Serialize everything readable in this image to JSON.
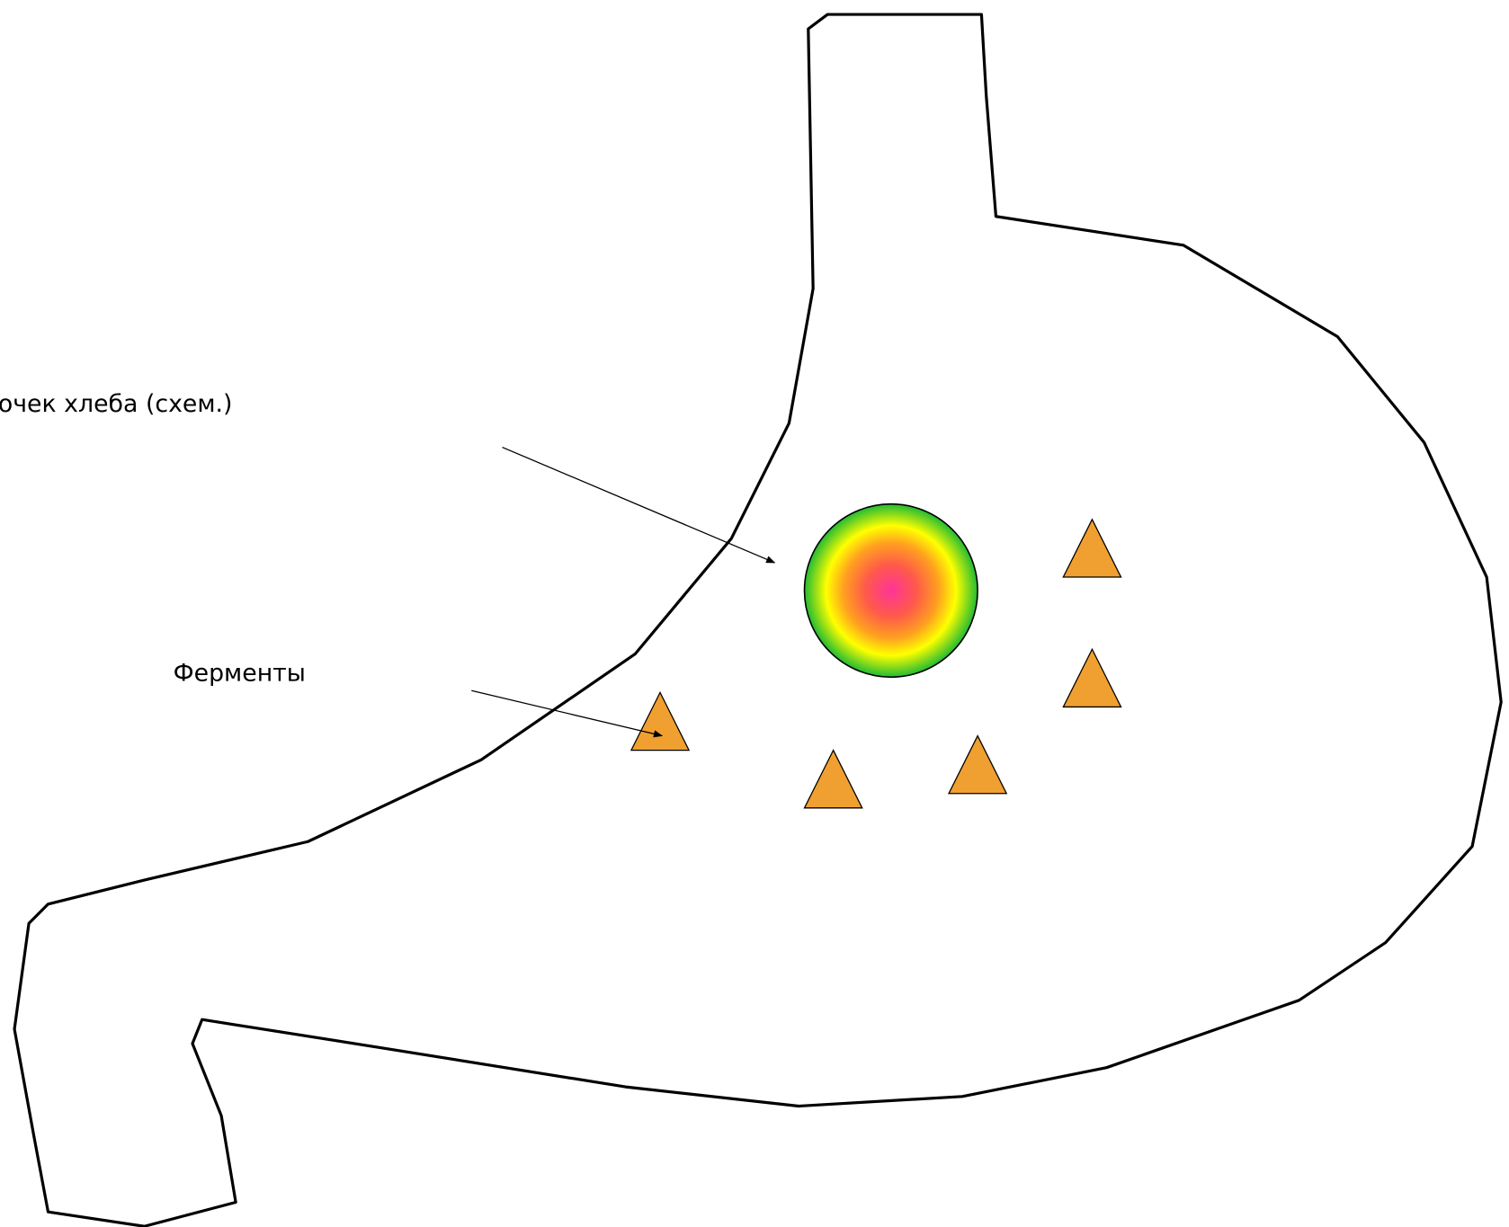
{
  "labels": {
    "bread": "очек хлеба (схем.)",
    "enzymes": "Ферменты"
  }
}
